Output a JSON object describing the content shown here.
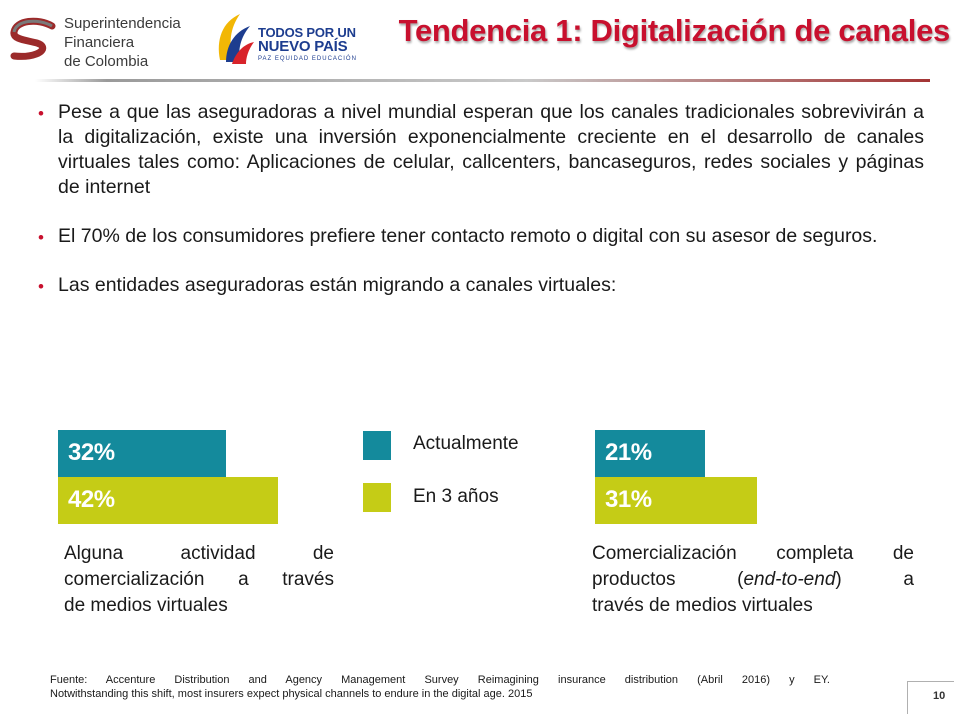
{
  "header": {
    "sfc_logo": {
      "lines": [
        "Superintendencia",
        "Financiera",
        "de Colombia"
      ]
    },
    "gov_logo": {
      "line1": "TODOS POR UN",
      "line2": "NUEVO PAÍS",
      "sub": "PAZ  EQUIDAD  EDUCACIÓN"
    },
    "title": "Tendencia 1: Digitalización de canales"
  },
  "bullets": [
    {
      "text": "Pese a que las aseguradoras a nivel mundial esperan que los canales tradicionales sobrevivirán a la digitalización, existe una inversión exponencialmente creciente en el desarrollo de canales virtuales tales como: Aplicaciones de celular, callcenters, bancaseguros, redes sociales y páginas de internet"
    },
    {
      "text": "El 70% de los consumidores prefiere tener contacto remoto o digital con su asesor de seguros."
    },
    {
      "text": "Las entidades aseguradoras están migrando a canales virtuales:"
    }
  ],
  "colors": {
    "title_red": "#c8102e",
    "teal": "#148a9c",
    "lime": "#c5cc16"
  },
  "legend": {
    "items": [
      {
        "label": "Actualmente",
        "color": "#148a9c"
      },
      {
        "label": "En 3 años",
        "color": "#c5cc16"
      }
    ]
  },
  "chart_data": [
    {
      "type": "bar",
      "orientation": "horizontal",
      "series": [
        {
          "name": "Actualmente",
          "values": [
            32
          ],
          "labels": [
            "32%"
          ],
          "color": "#148a9c"
        },
        {
          "name": "En 3 años",
          "values": [
            42
          ],
          "labels": [
            "42%"
          ],
          "color": "#c5cc16"
        }
      ],
      "caption": "Alguna actividad de comercialización a través de medios virtuales",
      "caption_lines": [
        "Alguna actividad de",
        "comercialización a través",
        "de medios virtuales"
      ]
    },
    {
      "type": "bar",
      "orientation": "horizontal",
      "series": [
        {
          "name": "Actualmente",
          "values": [
            21
          ],
          "labels": [
            "21%"
          ],
          "color": "#148a9c"
        },
        {
          "name": "En 3 años",
          "values": [
            31
          ],
          "labels": [
            "31%"
          ],
          "color": "#c5cc16"
        }
      ],
      "caption": "Comercialización completa de productos (end-to-end) a través de medios virtuales",
      "caption_lines": [
        "Comercialización completa de",
        "productos (end-to-end) a",
        "través de medios virtuales"
      ]
    }
  ],
  "footer": {
    "source_lines": [
      "Fuente: Accenture Distribution and Agency Management Survey Reimagining insurance distribution (Abril 2016) y EY.",
      "Notwithstanding this shift, most insurers expect physical channels to endure in the digital age. 2015"
    ],
    "page_number": "10"
  }
}
